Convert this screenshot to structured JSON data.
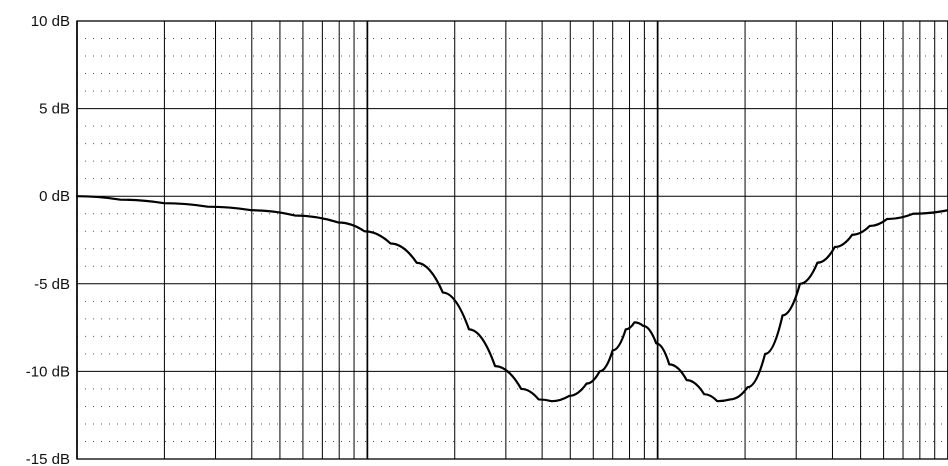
{
  "chart_data": {
    "type": "line",
    "title": "",
    "xlabel": "",
    "ylabel": "",
    "x_scale": "log",
    "xlim": [
      0,
      1
    ],
    "ylim": [
      -15,
      10
    ],
    "y_ticks": [
      10,
      5,
      0,
      -5,
      -10,
      -15
    ],
    "y_tick_labels": [
      "10 dB",
      "5 dB",
      "0 dB",
      "-5 dB",
      "-10 dB",
      "-15 dB"
    ],
    "grid": {
      "major": true,
      "minor_dotted": true
    },
    "legend": "none",
    "series": [
      {
        "values_xy": [
          [
            0.0,
            0.0
          ],
          [
            0.05,
            -0.2
          ],
          [
            0.1,
            -0.4
          ],
          [
            0.15,
            -0.6
          ],
          [
            0.2,
            -0.8
          ],
          [
            0.25,
            -1.1
          ],
          [
            0.3,
            -1.5
          ],
          [
            0.33,
            -2.0
          ],
          [
            0.36,
            -2.7
          ],
          [
            0.39,
            -3.8
          ],
          [
            0.42,
            -5.5
          ],
          [
            0.45,
            -7.6
          ],
          [
            0.48,
            -9.7
          ],
          [
            0.51,
            -11.0
          ],
          [
            0.53,
            -11.6
          ],
          [
            0.545,
            -11.7
          ],
          [
            0.565,
            -11.4
          ],
          [
            0.585,
            -10.7
          ],
          [
            0.6,
            -10.0
          ],
          [
            0.615,
            -8.8
          ],
          [
            0.63,
            -7.6
          ],
          [
            0.64,
            -7.2
          ],
          [
            0.65,
            -7.4
          ],
          [
            0.665,
            -8.4
          ],
          [
            0.68,
            -9.6
          ],
          [
            0.7,
            -10.5
          ],
          [
            0.72,
            -11.3
          ],
          [
            0.735,
            -11.7
          ],
          [
            0.75,
            -11.6
          ],
          [
            0.77,
            -10.9
          ],
          [
            0.79,
            -9.0
          ],
          [
            0.81,
            -6.8
          ],
          [
            0.83,
            -5.0
          ],
          [
            0.85,
            -3.8
          ],
          [
            0.87,
            -2.9
          ],
          [
            0.89,
            -2.2
          ],
          [
            0.91,
            -1.7
          ],
          [
            0.93,
            -1.3
          ],
          [
            0.96,
            -1.0
          ],
          [
            1.0,
            -0.8
          ]
        ]
      }
    ],
    "colors": {
      "curve": "#000000",
      "major_grid": "#000000",
      "minor_grid": "#555555",
      "background": "#ffffff"
    }
  }
}
